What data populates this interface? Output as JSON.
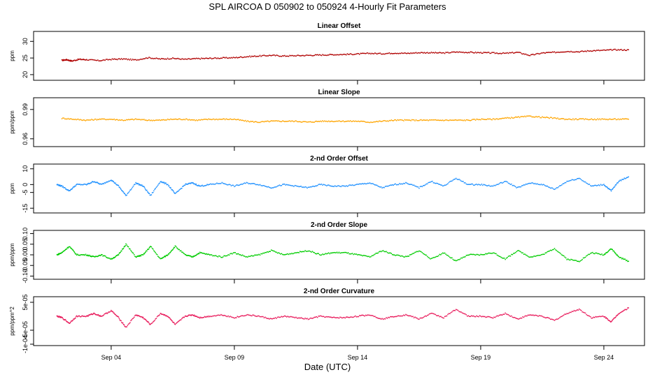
{
  "title": "SPL   AIRCOA D   050902 to 050924   4-Hourly Fit Parameters",
  "xlabel": "Date (UTC)",
  "x_ticks": [
    {
      "day": 4,
      "label": "Sep 04"
    },
    {
      "day": 9,
      "label": "Sep 09"
    },
    {
      "day": 14,
      "label": "Sep 14"
    },
    {
      "day": 19,
      "label": "Sep 19"
    },
    {
      "day": 24,
      "label": "Sep 24"
    }
  ],
  "chart_data": [
    {
      "type": "line",
      "title": "Linear Offset",
      "ylabel": "ppm",
      "ylim": [
        18.3,
        33
      ],
      "yticks": [
        20,
        25,
        30
      ],
      "ytick_labels": [
        "20",
        "25",
        "30"
      ],
      "color": "#b00000",
      "x_days": [
        2.0,
        2.2,
        2.4,
        2.7,
        3.0,
        3.5,
        4.0,
        4.5,
        5.0,
        5.5,
        6.0,
        6.5,
        7.0,
        7.5,
        8.0,
        8.5,
        9.0,
        9.5,
        10.0,
        10.5,
        11.0,
        11.5,
        12.0,
        12.5,
        13.0,
        13.5,
        14.0,
        14.5,
        15.0,
        15.5,
        16.0,
        16.5,
        17.0,
        17.5,
        18.0,
        18.5,
        19.0,
        19.5,
        20.0,
        20.5,
        21.0,
        21.5,
        22.0,
        22.5,
        23.0,
        23.5,
        24.0,
        24.5,
        25.0
      ],
      "values": [
        24.3,
        24.5,
        24.1,
        24.6,
        24.5,
        24.2,
        24.6,
        24.7,
        24.4,
        25.1,
        24.7,
        24.9,
        24.6,
        24.8,
        24.9,
        25.0,
        25.1,
        25.4,
        25.6,
        25.8,
        25.6,
        25.7,
        25.8,
        25.9,
        26.0,
        26.1,
        26.2,
        26.4,
        26.3,
        26.5,
        26.4,
        26.6,
        26.6,
        26.5,
        26.8,
        26.7,
        26.6,
        26.5,
        26.4,
        26.7,
        25.8,
        26.5,
        26.7,
        27.0,
        26.9,
        27.2,
        27.3,
        27.5,
        27.4
      ]
    },
    {
      "type": "line",
      "title": "Linear Slope",
      "ylabel": "ppm/ppm",
      "ylim": [
        0.952,
        1.002
      ],
      "yticks": [
        0.96,
        0.99
      ],
      "ytick_labels": [
        "0.96",
        "0.99"
      ],
      "color": "#ffa500",
      "x_days": [
        2.0,
        2.5,
        3.0,
        3.5,
        4.0,
        4.5,
        5.0,
        5.5,
        6.0,
        6.5,
        7.0,
        7.5,
        8.0,
        8.5,
        9.0,
        9.5,
        10.0,
        10.5,
        11.0,
        11.5,
        12.0,
        12.5,
        13.0,
        13.5,
        14.0,
        14.5,
        15.0,
        15.5,
        16.0,
        16.5,
        17.0,
        17.5,
        18.0,
        18.5,
        19.0,
        19.5,
        20.0,
        20.5,
        21.0,
        21.5,
        22.0,
        22.5,
        23.0,
        23.5,
        24.0,
        24.5,
        25.0
      ],
      "values": [
        0.981,
        0.98,
        0.979,
        0.98,
        0.98,
        0.979,
        0.98,
        0.979,
        0.979,
        0.98,
        0.98,
        0.979,
        0.98,
        0.98,
        0.98,
        0.978,
        0.977,
        0.978,
        0.978,
        0.978,
        0.977,
        0.978,
        0.978,
        0.978,
        0.978,
        0.977,
        0.978,
        0.979,
        0.979,
        0.979,
        0.979,
        0.979,
        0.979,
        0.979,
        0.98,
        0.98,
        0.981,
        0.982,
        0.983,
        0.982,
        0.981,
        0.98,
        0.98,
        0.98,
        0.98,
        0.98,
        0.98
      ]
    },
    {
      "type": "line",
      "title": "2-nd Order Offset",
      "ylabel": "ppm",
      "ylim": [
        -18,
        13
      ],
      "yticks": [
        -15,
        -5,
        0,
        10
      ],
      "ytick_labels": [
        "-15",
        "-5",
        "0",
        "10"
      ],
      "color": "#1e90ff",
      "x_days": [
        1.8,
        2.0,
        2.3,
        2.6,
        3.0,
        3.3,
        3.6,
        4.0,
        4.3,
        4.6,
        5.0,
        5.3,
        5.6,
        6.0,
        6.3,
        6.6,
        7.0,
        7.3,
        7.6,
        8.0,
        8.5,
        9.0,
        9.5,
        10.0,
        10.5,
        11.0,
        11.5,
        12.0,
        12.5,
        13.0,
        13.5,
        14.0,
        14.5,
        15.0,
        15.5,
        16.0,
        16.5,
        17.0,
        17.5,
        18.0,
        18.5,
        19.0,
        19.5,
        20.0,
        20.5,
        21.0,
        21.5,
        22.0,
        22.5,
        23.0,
        23.5,
        24.0,
        24.3,
        24.6,
        25.0
      ],
      "values": [
        0,
        -1,
        -4,
        0,
        0,
        2,
        0,
        3,
        -1,
        -7,
        1,
        -1,
        -7,
        2,
        0,
        -6,
        0,
        1,
        -1,
        0,
        1,
        -1,
        1,
        0,
        -2,
        0,
        -1,
        -2,
        0,
        -1,
        -1,
        0,
        1,
        -2,
        0,
        1,
        -2,
        2,
        -1,
        4,
        0,
        0,
        -1,
        2,
        -2,
        1,
        0,
        -3,
        2,
        4,
        -1,
        0,
        -4,
        2,
        5
      ]
    },
    {
      "type": "line",
      "title": "2-nd Order Slope",
      "ylabel": "ppm/ppm",
      "ylim": [
        -0.115,
        0.115
      ],
      "yticks": [
        -0.1,
        -0.05,
        0.0,
        0.05,
        0.1
      ],
      "ytick_labels": [
        "-0.10",
        "-0.05",
        "0.00",
        "0.05",
        "0.10"
      ],
      "color": "#00cc00",
      "x_days": [
        1.8,
        2.0,
        2.3,
        2.6,
        3.0,
        3.3,
        3.6,
        4.0,
        4.3,
        4.6,
        5.0,
        5.3,
        5.6,
        6.0,
        6.3,
        6.6,
        7.0,
        7.3,
        7.6,
        8.0,
        8.5,
        9.0,
        9.5,
        10.0,
        10.5,
        11.0,
        11.5,
        12.0,
        12.5,
        13.0,
        13.5,
        14.0,
        14.5,
        15.0,
        15.5,
        16.0,
        16.5,
        17.0,
        17.5,
        18.0,
        18.5,
        19.0,
        19.5,
        20.0,
        20.5,
        21.0,
        21.5,
        22.0,
        22.5,
        23.0,
        23.5,
        24.0,
        24.3,
        24.6,
        25.0
      ],
      "values": [
        0.0,
        0.01,
        0.04,
        0.0,
        0.0,
        -0.01,
        0.0,
        -0.02,
        0.0,
        0.05,
        -0.01,
        0.0,
        0.04,
        -0.02,
        0.0,
        0.04,
        0.0,
        -0.01,
        0.01,
        0.0,
        -0.01,
        0.01,
        -0.01,
        0.0,
        0.02,
        0.0,
        0.01,
        0.02,
        0.0,
        0.01,
        0.01,
        0.0,
        -0.01,
        0.02,
        0.0,
        -0.01,
        0.02,
        -0.02,
        0.01,
        -0.03,
        0.0,
        0.0,
        0.01,
        -0.02,
        0.02,
        -0.01,
        0.0,
        0.03,
        -0.02,
        -0.03,
        0.01,
        0.0,
        0.03,
        -0.01,
        -0.03
      ]
    },
    {
      "type": "line",
      "title": "2-nd Order Curvature",
      "ylabel": "ppm/ppm^2",
      "ylim": [
        -0.000105,
        7e-05
      ],
      "yticks": [
        -0.0001,
        -5e-05,
        5e-05
      ],
      "ytick_labels": [
        "-1e-04",
        "-5e-05",
        "5e-05"
      ],
      "color": "#e8195a",
      "x_days": [
        1.8,
        2.0,
        2.3,
        2.6,
        3.0,
        3.3,
        3.6,
        4.0,
        4.3,
        4.6,
        5.0,
        5.3,
        5.6,
        6.0,
        6.3,
        6.6,
        7.0,
        7.3,
        7.6,
        8.0,
        8.5,
        9.0,
        9.5,
        10.0,
        10.5,
        11.0,
        11.5,
        12.0,
        12.5,
        13.0,
        13.5,
        14.0,
        14.5,
        15.0,
        15.5,
        16.0,
        16.5,
        17.0,
        17.5,
        18.0,
        18.5,
        19.0,
        19.5,
        20.0,
        20.5,
        21.0,
        21.5,
        22.0,
        22.5,
        23.0,
        23.5,
        24.0,
        24.3,
        24.6,
        25.0
      ],
      "values": [
        0.0,
        -5e-06,
        -2.5e-05,
        0.0,
        0.0,
        1e-05,
        0.0,
        2e-05,
        -5e-06,
        -4e-05,
        5e-06,
        -5e-06,
        -3e-05,
        1e-05,
        0.0,
        -3e-05,
        0.0,
        5e-06,
        -5e-06,
        0.0,
        5e-06,
        -5e-06,
        5e-06,
        0.0,
        -1e-05,
        0.0,
        -5e-06,
        -1e-05,
        0.0,
        -5e-06,
        -5e-06,
        0.0,
        5e-06,
        -1e-05,
        0.0,
        5e-06,
        -1e-05,
        1e-05,
        -5e-06,
        2.5e-05,
        0.0,
        0.0,
        -5e-06,
        1e-05,
        -1e-05,
        5e-06,
        0.0,
        -1.5e-05,
        1e-05,
        2.5e-05,
        -5e-06,
        0.0,
        -2e-05,
        1e-05,
        3e-05
      ]
    }
  ]
}
